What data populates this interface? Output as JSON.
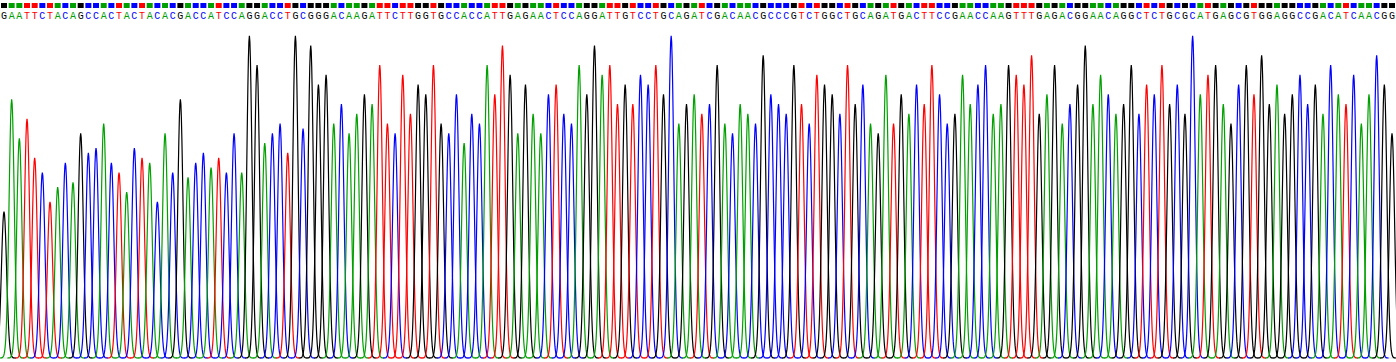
{
  "chart_data": {
    "type": "chromatogram",
    "categories": [
      "G",
      "A",
      "A",
      "T",
      "T",
      "C",
      "T",
      "A",
      "C",
      "A",
      "G",
      "C",
      "C",
      "A",
      "C",
      "T",
      "A",
      "C",
      "T",
      "A",
      "C",
      "A",
      "C",
      "G",
      "A",
      "C",
      "C",
      "A",
      "T",
      "C",
      "C",
      "A",
      "G",
      "G",
      "A",
      "C",
      "C",
      "T",
      "G",
      "C",
      "G",
      "G",
      "G",
      "A",
      "C",
      "A",
      "A",
      "G",
      "A",
      "T",
      "T",
      "C",
      "T",
      "T",
      "G",
      "G",
      "T",
      "G",
      "C",
      "C",
      "A",
      "C",
      "C",
      "A",
      "T",
      "T",
      "G",
      "A",
      "G",
      "A",
      "A",
      "C",
      "T",
      "C",
      "C",
      "A",
      "G",
      "G",
      "A",
      "T",
      "T",
      "G",
      "T",
      "C",
      "C",
      "T",
      "G",
      "C",
      "A",
      "G",
      "A",
      "T",
      "C",
      "G",
      "A",
      "C",
      "A",
      "A",
      "C",
      "G",
      "C",
      "C",
      "C",
      "G",
      "T",
      "C",
      "T",
      "G",
      "G",
      "C",
      "T",
      "G",
      "C",
      "A",
      "G",
      "A",
      "T",
      "G",
      "A",
      "C",
      "T",
      "T",
      "C",
      "C",
      "G",
      "A",
      "A",
      "C",
      "C",
      "A",
      "A",
      "G",
      "T",
      "T",
      "T",
      "G",
      "A",
      "G",
      "A",
      "C",
      "G",
      "G",
      "A",
      "A",
      "C",
      "A",
      "G",
      "G",
      "C",
      "T",
      "C",
      "T",
      "G",
      "C",
      "G",
      "C",
      "A",
      "T",
      "G",
      "A",
      "G",
      "C",
      "G",
      "T",
      "G",
      "G",
      "A",
      "G",
      "G",
      "C",
      "C",
      "G",
      "A",
      "C",
      "A",
      "T",
      "C",
      "A",
      "A",
      "C",
      "G",
      "G"
    ],
    "values": [
      150,
      265,
      225,
      245,
      205,
      190,
      160,
      175,
      200,
      180,
      230,
      210,
      215,
      240,
      200,
      190,
      170,
      215,
      205,
      200,
      160,
      230,
      190,
      265,
      185,
      200,
      210,
      195,
      205,
      190,
      230,
      190,
      330,
      300,
      220,
      230,
      240,
      210,
      330,
      235,
      320,
      280,
      290,
      240,
      260,
      230,
      250,
      270,
      260,
      300,
      240,
      230,
      290,
      250,
      280,
      270,
      300,
      240,
      230,
      270,
      220,
      250,
      240,
      300,
      270,
      320,
      290,
      230,
      280,
      250,
      230,
      270,
      280,
      250,
      240,
      300,
      270,
      320,
      290,
      300,
      260,
      280,
      260,
      290,
      280,
      300,
      270,
      330,
      240,
      260,
      270,
      250,
      260,
      300,
      240,
      230,
      260,
      250,
      240,
      310,
      270,
      260,
      250,
      300,
      260,
      240,
      290,
      280,
      270,
      250,
      300,
      260,
      280,
      240,
      230,
      290,
      240,
      270,
      250,
      280,
      260,
      300,
      270,
      240,
      250,
      290,
      260,
      280,
      300,
      250,
      260,
      300,
      290,
      280,
      310,
      250,
      270,
      300,
      240,
      260,
      280,
      320,
      260,
      290,
      270,
      250,
      260,
      300,
      250,
      280,
      270,
      300,
      260,
      280,
      250,
      330,
      270,
      290,
      300,
      260,
      240,
      280,
      300,
      270,
      310,
      260,
      280,
      250,
      270,
      290,
      260,
      280,
      250,
      300,
      270,
      260,
      290,
      240,
      270,
      310,
      280,
      230
    ],
    "colors": [
      "#000000",
      "#00a000",
      "#00a000",
      "#ff0000",
      "#ff0000",
      "#0000ff",
      "#ff0000",
      "#00a000",
      "#0000ff",
      "#00a000",
      "#000000",
      "#0000ff",
      "#0000ff",
      "#00a000",
      "#0000ff",
      "#ff0000",
      "#00a000",
      "#0000ff",
      "#ff0000",
      "#00a000",
      "#0000ff",
      "#00a000",
      "#0000ff",
      "#000000",
      "#00a000",
      "#0000ff",
      "#0000ff",
      "#00a000",
      "#ff0000",
      "#0000ff",
      "#0000ff",
      "#00a000",
      "#000000",
      "#000000",
      "#00a000",
      "#0000ff",
      "#0000ff",
      "#ff0000",
      "#000000",
      "#0000ff",
      "#000000",
      "#000000",
      "#000000",
      "#00a000",
      "#0000ff",
      "#00a000",
      "#00a000",
      "#000000",
      "#00a000",
      "#ff0000",
      "#ff0000",
      "#0000ff",
      "#ff0000",
      "#ff0000",
      "#000000",
      "#000000",
      "#ff0000",
      "#000000",
      "#0000ff",
      "#0000ff",
      "#00a000",
      "#0000ff",
      "#0000ff",
      "#00a000",
      "#ff0000",
      "#ff0000",
      "#000000",
      "#00a000",
      "#000000",
      "#00a000",
      "#00a000",
      "#0000ff",
      "#ff0000",
      "#0000ff",
      "#0000ff",
      "#00a000",
      "#000000",
      "#000000",
      "#00a000",
      "#ff0000",
      "#ff0000",
      "#000000",
      "#ff0000",
      "#0000ff",
      "#0000ff",
      "#ff0000",
      "#000000",
      "#0000ff",
      "#00a000",
      "#000000",
      "#00a000",
      "#ff0000",
      "#0000ff",
      "#000000",
      "#00a000",
      "#0000ff",
      "#00a000",
      "#00a000",
      "#0000ff",
      "#000000",
      "#0000ff",
      "#0000ff",
      "#0000ff",
      "#000000",
      "#ff0000",
      "#0000ff",
      "#ff0000",
      "#000000",
      "#000000",
      "#0000ff",
      "#ff0000",
      "#000000",
      "#0000ff",
      "#00a000",
      "#000000",
      "#00a000",
      "#ff0000",
      "#000000",
      "#00a000",
      "#0000ff",
      "#ff0000",
      "#ff0000",
      "#0000ff",
      "#0000ff",
      "#000000",
      "#00a000",
      "#00a000",
      "#0000ff",
      "#0000ff",
      "#00a000",
      "#00a000",
      "#000000",
      "#ff0000",
      "#ff0000",
      "#ff0000",
      "#000000",
      "#00a000",
      "#000000",
      "#00a000",
      "#0000ff",
      "#000000",
      "#000000",
      "#00a000",
      "#00a000",
      "#0000ff",
      "#00a000",
      "#000000",
      "#000000",
      "#0000ff",
      "#ff0000",
      "#0000ff",
      "#ff0000",
      "#000000",
      "#0000ff",
      "#000000",
      "#0000ff",
      "#00a000",
      "#ff0000",
      "#000000",
      "#00a000",
      "#000000",
      "#0000ff",
      "#000000",
      "#ff0000",
      "#000000",
      "#000000",
      "#00a000",
      "#000000",
      "#000000",
      "#0000ff",
      "#0000ff",
      "#000000",
      "#00a000",
      "#0000ff",
      "#00a000",
      "#ff0000",
      "#0000ff",
      "#00a000",
      "#00a000",
      "#0000ff",
      "#000000",
      "#000000"
    ],
    "ylim": [
      0,
      340
    ],
    "grid": false,
    "tick_labels": false
  }
}
